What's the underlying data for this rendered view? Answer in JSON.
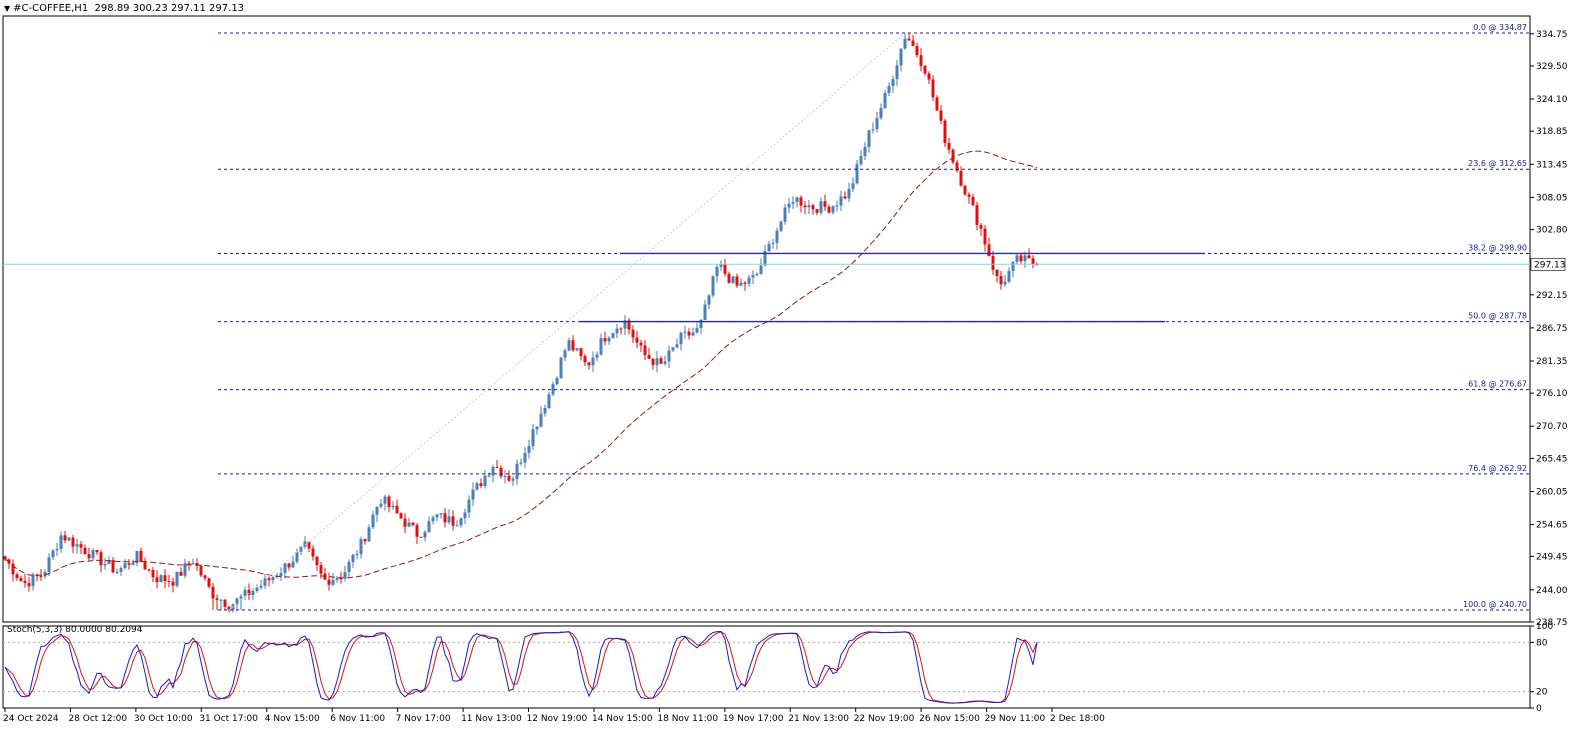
{
  "header": {
    "symbol": "#C-COFFEE,H1",
    "ohlc": "298.89 300.23 297.11 297.13"
  },
  "current_price_label": "297.13",
  "stoch_label": "Stoch(5,3,3) 80.0000 80.2094",
  "colors": {
    "bull": "#4a7fb8",
    "bear": "#e01010",
    "ma": "#8b1a1a",
    "fib": "#1a1a8c",
    "sr_line": "#2a2aa0",
    "current_line": "#7fd8d8",
    "stoch_main": "#1a1acc",
    "stoch_signal": "#e01010",
    "grid_text": "#000000"
  },
  "chart_data": [
    {
      "type": "candlestick",
      "title": "#C-COFFEE,H1",
      "ylim": [
        238.75,
        337.0
      ],
      "y_ticks": [
        "334.75",
        "329.50",
        "324.10",
        "318.85",
        "313.45",
        "308.05",
        "302.80",
        "292.15",
        "286.75",
        "281.35",
        "276.10",
        "270.70",
        "265.45",
        "260.05",
        "254.65",
        "249.45",
        "244.00",
        "238.75"
      ],
      "x_ticks": [
        "24 Oct 2024",
        "28 Oct 12:00",
        "30 Oct 10:00",
        "31 Oct 17:00",
        "4 Nov 15:00",
        "6 Nov 11:00",
        "7 Nov 17:00",
        "11 Nov 13:00",
        "12 Nov 19:00",
        "14 Nov 15:00",
        "18 Nov 11:00",
        "19 Nov 17:00",
        "21 Nov 13:00",
        "22 Nov 19:00",
        "26 Nov 15:00",
        "29 Nov 11:00",
        "2 Dec 18:00"
      ],
      "close_path": [
        249.0,
        245.0,
        246.5,
        253.0,
        251.0,
        249.0,
        247.0,
        249.5,
        246.0,
        245.5,
        249.0,
        243.5,
        241.5,
        243.5,
        245.5,
        248.0,
        251.0,
        245.5,
        246.5,
        251.5,
        259.0,
        256.0,
        253.0,
        256.0,
        255.0,
        260.0,
        264.5,
        262.0,
        269.0,
        276.0,
        284.5,
        280.5,
        285.5,
        288.0,
        282.5,
        280.5,
        285.0,
        286.5,
        297.0,
        293.5,
        295.0,
        302.0,
        308.0,
        306.5,
        306.5,
        309.0,
        318.0,
        325.0,
        334.8,
        329.5,
        318.5,
        310.5,
        303.0,
        293.5,
        298.0,
        297.13
      ],
      "current_price": 297.13,
      "fibonacci": [
        {
          "label": "0.0 @ 334.87",
          "level": 334.87
        },
        {
          "label": "23.6 @ 312.65",
          "level": 312.65
        },
        {
          "label": "38.2 @ 298.90",
          "level": 298.9
        },
        {
          "label": "50.0 @ 287.78",
          "level": 287.78
        },
        {
          "label": "61.8 @ 276.67",
          "level": 276.67
        },
        {
          "label": "76.4 @ 262.92",
          "level": 262.92
        },
        {
          "label": "100.0 @ 240.70",
          "level": 240.7
        }
      ],
      "horizontal_lines": [
        298.9,
        287.78
      ],
      "moving_average": "dashed"
    },
    {
      "type": "line",
      "name": "Stoch(5,3,3)",
      "ylim": [
        0,
        100
      ],
      "y_ticks": [
        "100",
        "80",
        "20",
        "0"
      ],
      "levels": [
        80,
        20
      ],
      "main_last": 80.0,
      "signal_last": 80.2094
    }
  ]
}
